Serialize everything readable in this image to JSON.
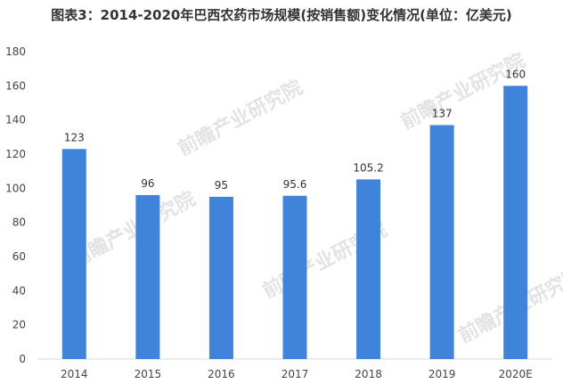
{
  "chart_data": {
    "type": "bar",
    "title": "图表3：2014-2020年巴西农药市场规模(按销售额)变化情况(单位：亿美元)",
    "categories": [
      "2014",
      "2015",
      "2016",
      "2017",
      "2018",
      "2019",
      "2020E"
    ],
    "values": [
      123,
      96,
      95,
      95.6,
      105.2,
      137,
      160
    ],
    "data_labels": [
      "123",
      "96",
      "95",
      "95.6",
      "105.2",
      "137",
      "160"
    ],
    "yticks": [
      "0",
      "20",
      "40",
      "60",
      "80",
      "100",
      "120",
      "140",
      "160",
      "180"
    ],
    "ylim": [
      0,
      180
    ],
    "ytick_step": 20,
    "xlabel": "",
    "ylabel": "",
    "grid": false,
    "legend": "none",
    "bar_color": "#3f83db",
    "axis_color": "#d9d9d9"
  },
  "watermark": {
    "text": "前瞻产业研究院"
  }
}
